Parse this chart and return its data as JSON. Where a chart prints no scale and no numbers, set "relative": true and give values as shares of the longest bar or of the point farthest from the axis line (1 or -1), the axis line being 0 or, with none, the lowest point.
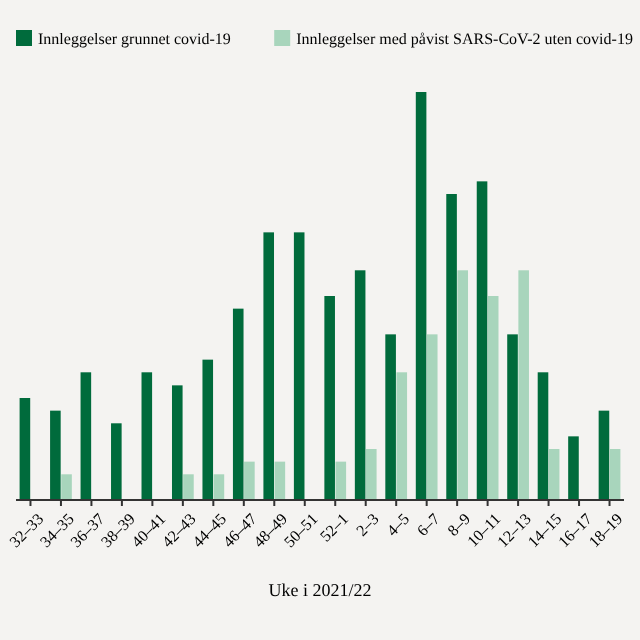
{
  "chart_data": {
    "type": "bar",
    "relative": true,
    "xlabel": "Uke i 2021/22",
    "legend": "top left",
    "categories": [
      "32–33",
      "34–35",
      "36–37",
      "38–39",
      "40–41",
      "42–43",
      "44–45",
      "46–47",
      "48–49",
      "50–51",
      "52–1",
      "2–3",
      "4–5",
      "6–7",
      "8–9",
      "10–11",
      "12–13",
      "14–15",
      "16–17",
      "18–19"
    ],
    "series": [
      {
        "name": "Innleggelser grunnet covid-19",
        "color": "#006b3c",
        "values": [
          0.25,
          0.219,
          0.313,
          0.188,
          0.313,
          0.281,
          0.344,
          0.469,
          0.656,
          0.656,
          0.5,
          0.563,
          0.406,
          1,
          0.75,
          0.781,
          0.406,
          0.313,
          0.156,
          0.219
        ]
      },
      {
        "name": "Innleggelser med påvist SARS-CoV-2 uten covid-19",
        "color": "#a8d5bc",
        "values": [
          0,
          0.063,
          0,
          0,
          0,
          0.063,
          0.063,
          0.094,
          0.094,
          0,
          0.094,
          0.125,
          0.313,
          0.406,
          0.563,
          0.5,
          0.563,
          0.125,
          0,
          0.125
        ]
      }
    ]
  }
}
